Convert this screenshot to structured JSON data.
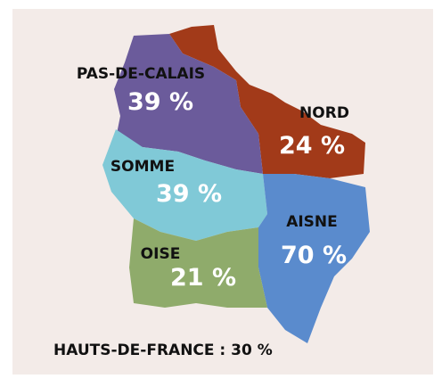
{
  "regions": [
    {
      "name": "PAS-DE-CALAIS",
      "value": "39 %",
      "color": "#6b5b9b"
    },
    {
      "name": "NORD",
      "value": "24 %",
      "color": "#a23a19"
    },
    {
      "name": "SOMME",
      "value": "39 %",
      "color": "#80c9d7"
    },
    {
      "name": "AISNE",
      "value": "70 %",
      "color": "#5a8bcd"
    },
    {
      "name": "OISE",
      "value": "21 %",
      "color": "#8fab6b"
    }
  ],
  "footer": "HAUTS-DE-FRANCE : 30 %"
}
